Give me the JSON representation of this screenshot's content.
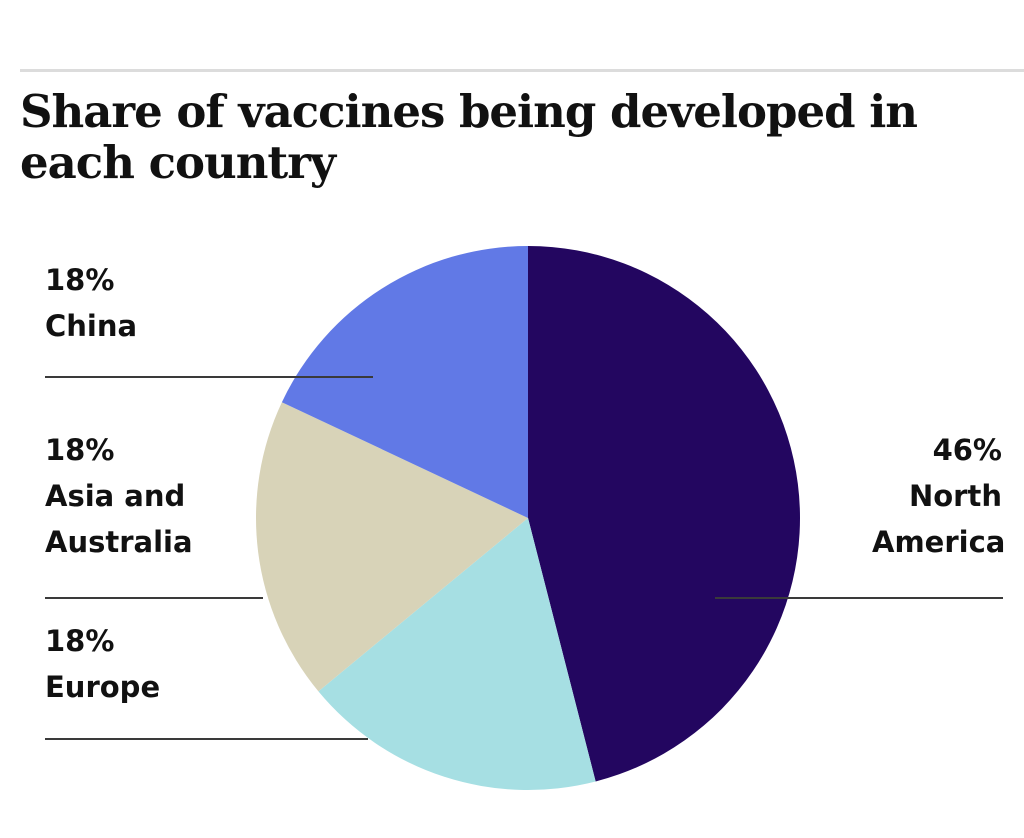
{
  "chart_data": {
    "type": "pie",
    "title": "Share of vaccines being developed in each country",
    "slices": [
      {
        "label": "North America",
        "value": 46,
        "value_label": "46%",
        "color": "#230660"
      },
      {
        "label": "Europe",
        "value": 18,
        "value_label": "18%",
        "color": "#a6dfe3"
      },
      {
        "label": "Asia and Australia",
        "value": 18,
        "value_label": "18%",
        "color": "#d8d3b8"
      },
      {
        "label": "China",
        "value": 18,
        "value_label": "18%",
        "color": "#6179e6"
      }
    ],
    "start_angle": "12 o'clock",
    "direction": "clockwise"
  }
}
